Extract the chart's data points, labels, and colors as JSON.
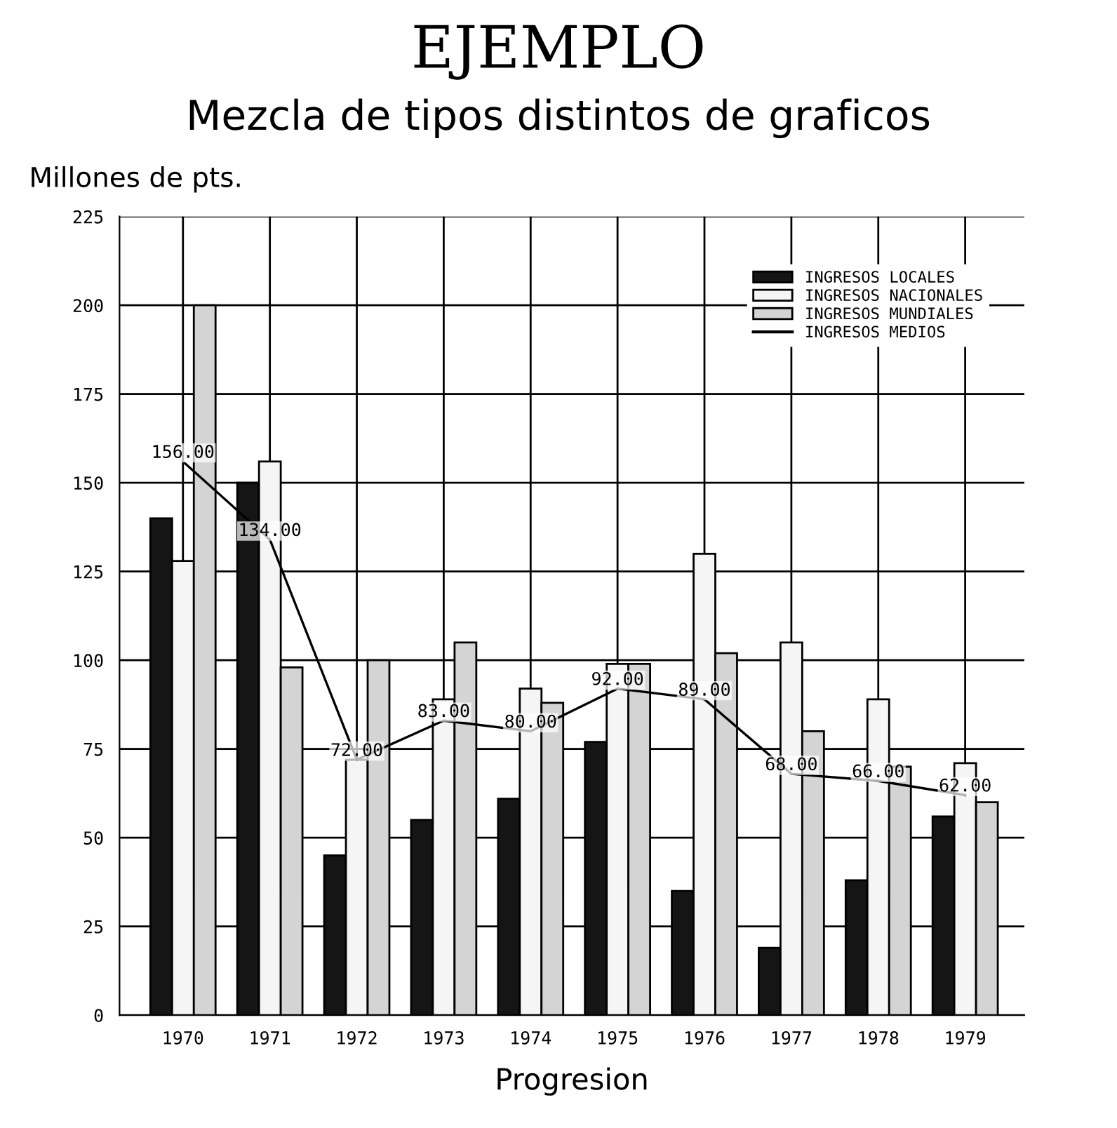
{
  "chart_data": {
    "type": "bar",
    "title": "EJEMPLO",
    "subtitle": "Mezcla de tipos distintos de graficos",
    "xlabel": "Progresion",
    "ylabel": "Millones de pts.",
    "categories": [
      "1970",
      "1971",
      "1972",
      "1973",
      "1974",
      "1975",
      "1976",
      "1977",
      "1978",
      "1979"
    ],
    "series": [
      {
        "name": "INGRESOS LOCALES",
        "color": "#151515",
        "values": [
          140,
          150,
          45,
          55,
          61,
          77,
          35,
          19,
          38,
          56
        ]
      },
      {
        "name": "INGRESOS NACIONALES",
        "color": "#f5f5f5",
        "values": [
          128,
          156,
          72,
          89,
          92,
          99,
          130,
          105,
          89,
          71
        ]
      },
      {
        "name": "INGRESOS MUNDIALES",
        "color": "#d4d4d4",
        "values": [
          200,
          98,
          100,
          105,
          88,
          99,
          102,
          80,
          70,
          60
        ]
      },
      {
        "name": "INGRESOS MEDIOS",
        "type": "line",
        "color": "#000000",
        "values": [
          156,
          134,
          72,
          83,
          80,
          92,
          89,
          68,
          66,
          62
        ],
        "value_labels": [
          "156.00",
          "134.00",
          "72.00",
          "83.00",
          "80.00",
          "92.00",
          "89.00",
          "68.00",
          "66.00",
          "62.00"
        ]
      }
    ],
    "ylim": [
      0,
      225
    ],
    "yticks": [
      0,
      25,
      50,
      75,
      100,
      125,
      150,
      175,
      200,
      225
    ],
    "grid": true,
    "legend": "top right",
    "marker": "none",
    "line_style": "solid"
  }
}
